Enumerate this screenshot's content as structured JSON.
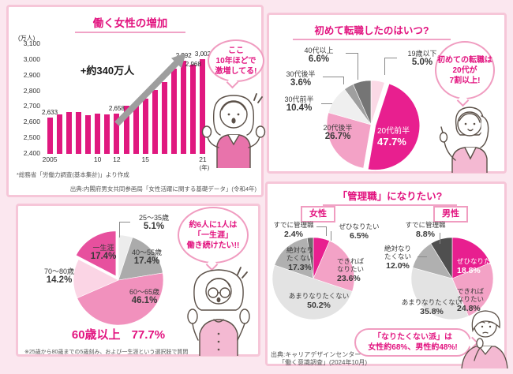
{
  "colors": {
    "page_bg": "#fbe7ef",
    "card_border": "#f6c6d8",
    "accent_magenta": "#e2137f",
    "bubble_border": "#f09cc0",
    "bar_magenta": "#e0187f",
    "arrow_gray": "#9e9e9e"
  },
  "chart_data": [
    {
      "id": "working-women-bar",
      "type": "bar",
      "title": "働く女性の増加",
      "y_unit": "(万人)",
      "x_unit": "(年)",
      "ylim": [
        2400,
        3100
      ],
      "grid": false,
      "legend": false,
      "yticks": [
        "3,100",
        "3,000",
        "2,900",
        "2,800",
        "2,700",
        "2,600",
        "2,500",
        "2,400"
      ],
      "years": [
        2005,
        2006,
        2007,
        2008,
        2009,
        2010,
        2011,
        2012,
        2013,
        2014,
        2015,
        2016,
        2017,
        2018,
        2019,
        2020,
        2021
      ],
      "values": [
        2633,
        2654,
        2665,
        2668,
        2649,
        2656,
        2654,
        2658,
        2707,
        2729,
        2754,
        2810,
        2859,
        2946,
        2992,
        2968,
        3002
      ],
      "xticks": [
        {
          "i": 0,
          "label": "2005"
        },
        {
          "i": 5,
          "label": "10"
        },
        {
          "i": 7,
          "label": "12"
        },
        {
          "i": 10,
          "label": "15"
        },
        {
          "i": 16,
          "label": "21"
        }
      ],
      "bar_labels": [
        {
          "i": 0,
          "text": "2,633"
        },
        {
          "i": 7,
          "text": "2,658"
        },
        {
          "i": 14,
          "text": "2,992"
        },
        {
          "i": 15,
          "text": "2,968",
          "dy": 6
        },
        {
          "i": 16,
          "text": "3,002"
        }
      ],
      "bar_color": "#e0187f",
      "annotation": "+約340万人"
    },
    {
      "id": "first-job-change-pie",
      "type": "pie",
      "title": "初めて転職したのはいつ?",
      "slices": [
        {
          "label": "19歳以下",
          "pct": 5.0,
          "color": "#fbd9e6"
        },
        {
          "label": "20代前半",
          "pct": 47.7,
          "color": "#e81f8f",
          "explode": true
        },
        {
          "label": "20代後半",
          "pct": 26.7,
          "color": "#f3a2c6"
        },
        {
          "label": "30代前半",
          "pct": 10.4,
          "color": "#efefef"
        },
        {
          "label": "30代後半",
          "pct": 3.6,
          "color": "#9f9f9f"
        },
        {
          "label": "40代以上",
          "pct": 6.6,
          "color": "#757575"
        }
      ]
    },
    {
      "id": "work-until-age-pie",
      "type": "pie",
      "slices": [
        {
          "label": "25〜35歳",
          "pct": 5.1,
          "color": "#ececec"
        },
        {
          "label": "40〜55歳",
          "pct": 17.4,
          "color": "#ababab"
        },
        {
          "label": "60〜65歳",
          "pct": 46.1,
          "color": "#f191bd"
        },
        {
          "label": "70〜80歳",
          "pct": 14.2,
          "color": "#fbd5e5"
        },
        {
          "label": "一生涯",
          "pct": 17.4,
          "color": "#e7509e",
          "explode": true
        }
      ],
      "callout": {
        "label": "60歳以上",
        "value": "77.7%"
      }
    },
    {
      "id": "manager-female-pie",
      "type": "pie",
      "title": "「管理職」になりたい?",
      "group": "女性",
      "slices": [
        {
          "label": "ぜひなりたい",
          "pct": 6.5,
          "color": "#e81f8f"
        },
        {
          "label": "できればなりたい",
          "pct": 23.6,
          "color": "#f3a2c6"
        },
        {
          "label": "あまりなりたくない",
          "pct": 50.2,
          "color": "#e3e3e3"
        },
        {
          "label": "絶対なりたくない",
          "pct": 17.3,
          "color": "#b0b0b0"
        },
        {
          "label": "すでに管理職",
          "pct": 2.4,
          "color": "#6e6e6e"
        }
      ]
    },
    {
      "id": "manager-male-pie",
      "type": "pie",
      "group": "男性",
      "slices": [
        {
          "label": "ぜひなりたい",
          "pct": 18.8,
          "color": "#e81f8f"
        },
        {
          "label": "できればなりたい",
          "pct": 24.8,
          "color": "#f3a2c6"
        },
        {
          "label": "あまりなりたくない",
          "pct": 35.8,
          "color": "#e3e3e3"
        },
        {
          "label": "絶対なりたくない",
          "pct": 12.0,
          "color": "#b0b0b0"
        },
        {
          "label": "すでに管理職",
          "pct": 8.8,
          "color": "#4f4f4f"
        }
      ]
    }
  ],
  "panels": {
    "women_increase": {
      "bubble_lines": [
        "ここ",
        "10年ほどで",
        "激増してる!"
      ],
      "footnote": "*総務省「労働力調査(基本集計)」より作成",
      "source": "出典:内閣府男女共同参画局「女性活躍に関する基礎データ」(令和4年)"
    },
    "first_job_change": {
      "bubble_lines": [
        "初めての転職は",
        "20代が",
        "7割以上!"
      ]
    },
    "work_until_age": {
      "bubble_lines": [
        "約6人に1人は",
        "「一生涯」",
        "働き続けたい!!"
      ],
      "footnote": "※25歳から80歳までの5歳刻み、および一生涯という選択肢で質問"
    },
    "manager": {
      "bubble_lines": [
        "「なりたくない派」は",
        "女性約68%、男性約48%!"
      ],
      "source_lines": [
        "出典:キャリアデザインセンター",
        "「働く意識調査」(2024年10月)"
      ]
    }
  }
}
